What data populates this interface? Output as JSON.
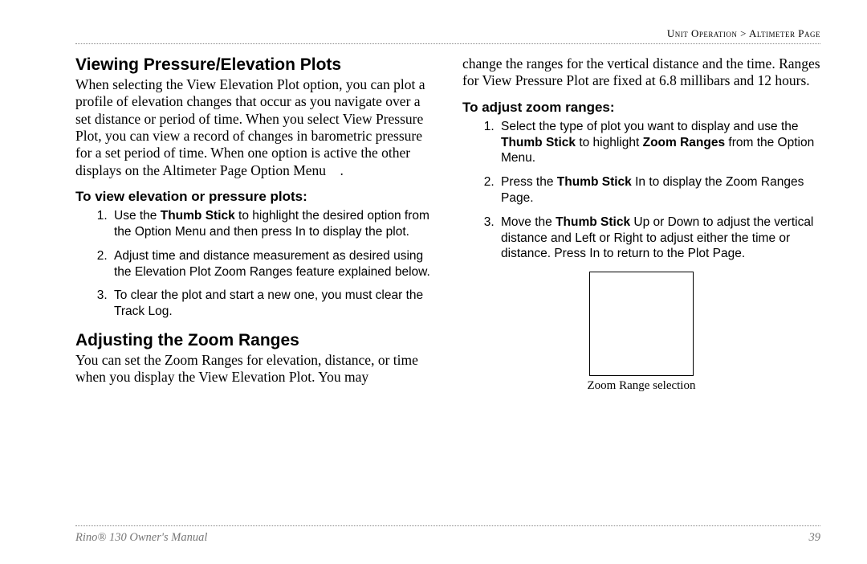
{
  "breadcrumb": {
    "left": "Unit Operation",
    "sep": " > ",
    "right": "Altimeter Page"
  },
  "col1": {
    "h1a": "Viewing Pressure/Elevation Plots",
    "p1": "When selecting the View Elevation Plot option, you can plot a profile of elevation changes that occur as you navigate over a set distance or period of time. When you select View Pressure Plot, you can view a record of changes in barometric pressure for a set period of time. When one option is active the other displays on the Altimeter Page Option Menu    .",
    "h2a": "To view elevation or pressure plots:",
    "steps_a": [
      {
        "pre": "Use the ",
        "b1": "Thumb Stick",
        "post": " to highlight the desired option from the Option Menu and then press In to display the plot."
      },
      {
        "pre": "Adjust time and distance measurement as desired using the Elevation Plot Zoom Ranges feature explained below.",
        "b1": "",
        "post": ""
      },
      {
        "pre": "To clear the plot and start a new one, you must clear the Track Log.",
        "b1": "",
        "post": ""
      }
    ],
    "h1b": "Adjusting the Zoom Ranges",
    "p2": "You can set the Zoom Ranges for elevation, distance, or time when you display the View Elevation Plot. You may"
  },
  "col2": {
    "p1": "change the ranges for the vertical distance and the time. Ranges for View Pressure Plot are fixed at 6.8 millibars and 12 hours.",
    "h2a": "To adjust zoom ranges:",
    "steps_a": [
      {
        "parts": [
          {
            "t": "Select the type of plot you want to display and use the "
          },
          {
            "t": "Thumb Stick",
            "b": true
          },
          {
            "t": " to highlight "
          },
          {
            "t": "Zoom Ranges",
            "b": true
          },
          {
            "t": " from the Option Menu."
          }
        ]
      },
      {
        "parts": [
          {
            "t": "Press the "
          },
          {
            "t": "Thumb Stick",
            "b": true
          },
          {
            "t": " In to display the Zoom Ranges Page."
          }
        ]
      },
      {
        "parts": [
          {
            "t": "Move the "
          },
          {
            "t": "Thumb Stick",
            "b": true
          },
          {
            "t": " Up or Down to adjust the vertical distance and Left or Right to adjust either the time or distance. Press In to return to the Plot Page."
          }
        ]
      }
    ],
    "caption": "Zoom Range selection"
  },
  "footer": {
    "manual": "Rino® 130 Owner's Manual",
    "page": "39"
  }
}
